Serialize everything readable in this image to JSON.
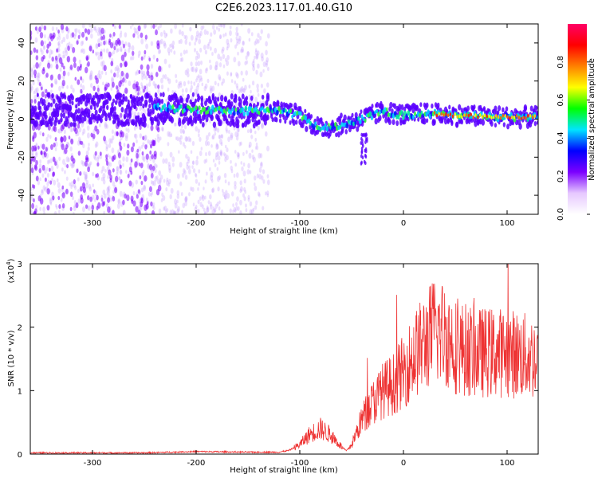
{
  "title": "C2E6.2023.117.01.40.G10",
  "chart_data": [
    {
      "type": "heatmap",
      "name": "spectrogram",
      "xlabel": "Height of straight line (km)",
      "ylabel": "Frequency (Hz)",
      "xlim": [
        -360,
        130
      ],
      "ylim": [
        -50,
        50
      ],
      "xticks": [
        -300,
        -200,
        -100,
        0,
        100
      ],
      "xtick_labels": [
        "-300",
        "-200",
        "-100",
        "0",
        "100"
      ],
      "yticks": [
        40,
        20,
        0,
        -20,
        -40
      ],
      "ytick_labels": [
        "40",
        "20",
        "0",
        "-20",
        "-40"
      ],
      "grid": false,
      "ridge": {
        "description": "dominant spectral ridge (center frequency vs height)",
        "x": [
          -240,
          -200,
          -160,
          -130,
          -100,
          -80,
          -60,
          -40,
          -20,
          0,
          20,
          50,
          100,
          125
        ],
        "y": [
          6,
          5,
          4,
          5,
          2,
          -5,
          -3,
          0,
          4,
          2,
          3,
          2,
          1,
          1
        ]
      },
      "colorbar": {
        "label": "Normalized spectral amplitude",
        "range": [
          0,
          1
        ],
        "ticks": [
          0.0,
          0.2,
          0.4,
          0.6,
          0.8
        ],
        "tick_labels": [
          "0.0",
          "0.2",
          "0.4",
          "0.6",
          "0.8"
        ],
        "colors": [
          "#ffffff",
          "#e6c8ff",
          "#7b00ff",
          "#0000ff",
          "#00e5ff",
          "#00ff00",
          "#ffff00",
          "#ff8000",
          "#ff0000",
          "#ff0066"
        ]
      }
    },
    {
      "type": "line",
      "name": "snr",
      "xlabel": "Height of straight line (km)",
      "ylabel": "SNR (10 * v/v)",
      "y_scale_label": "(x10",
      "y_scale_exp": "4",
      "y_scale_close": ")",
      "xlim": [
        -360,
        130
      ],
      "ylim": [
        0,
        3
      ],
      "xticks": [
        -300,
        -200,
        -100,
        0,
        100
      ],
      "xtick_labels": [
        "-300",
        "-200",
        "-100",
        "0",
        "100"
      ],
      "yticks": [
        0,
        1,
        2,
        3
      ],
      "ytick_labels": [
        "0",
        "1",
        "2",
        "3"
      ],
      "color": "#ee3333",
      "series": [
        {
          "name": "SNR",
          "x": [
            -360,
            -250,
            -200,
            -150,
            -120,
            -110,
            -100,
            -90,
            -80,
            -70,
            -60,
            -55,
            -50,
            -45,
            -40,
            -30,
            -20,
            -10,
            0,
            10,
            20,
            30,
            40,
            50,
            70,
            100,
            130
          ],
          "y": [
            0.02,
            0.02,
            0.04,
            0.03,
            0.03,
            0.06,
            0.15,
            0.32,
            0.4,
            0.3,
            0.12,
            0.05,
            0.15,
            0.35,
            0.55,
            0.8,
            1.0,
            1.1,
            1.3,
            1.55,
            1.75,
            1.95,
            1.9,
            1.7,
            1.6,
            1.6,
            1.5
          ]
        }
      ]
    }
  ]
}
